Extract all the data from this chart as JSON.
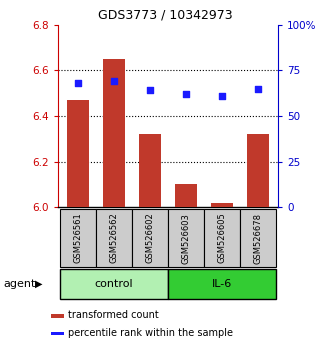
{
  "title": "GDS3773 / 10342973",
  "samples": [
    "GSM526561",
    "GSM526562",
    "GSM526602",
    "GSM526603",
    "GSM526605",
    "GSM526678"
  ],
  "bar_values": [
    6.47,
    6.65,
    6.32,
    6.1,
    6.02,
    6.32
  ],
  "bar_bottom": 6.0,
  "percentile_values": [
    68,
    69,
    64,
    62,
    61,
    65
  ],
  "bar_color": "#c0392b",
  "percentile_color": "#1a1aff",
  "ylim_left": [
    6.0,
    6.8
  ],
  "ylim_right": [
    0,
    100
  ],
  "yticks_left": [
    6.0,
    6.2,
    6.4,
    6.6,
    6.8
  ],
  "yticks_right": [
    0,
    25,
    50,
    75,
    100
  ],
  "ytick_labels_right": [
    "0",
    "25",
    "50",
    "75",
    "100%"
  ],
  "groups": [
    {
      "label": "control",
      "indices": [
        0,
        1,
        2
      ],
      "color": "#b2f0b2"
    },
    {
      "label": "IL-6",
      "indices": [
        3,
        4,
        5
      ],
      "color": "#33cc33"
    }
  ],
  "agent_label": "agent",
  "legend_bar_label": "transformed count",
  "legend_pct_label": "percentile rank within the sample",
  "title_color": "#000000",
  "left_axis_color": "#cc0000",
  "right_axis_color": "#0000cc",
  "grid_color": "#000000",
  "sample_box_color": "#cccccc",
  "bar_width": 0.6
}
